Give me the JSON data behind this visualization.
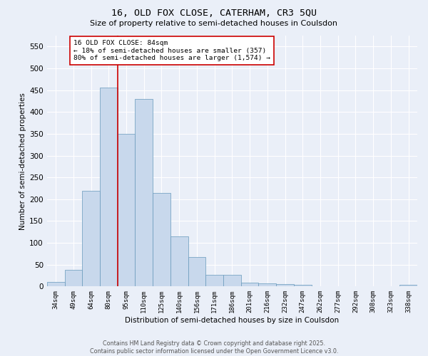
{
  "title_line1": "16, OLD FOX CLOSE, CATERHAM, CR3 5QU",
  "title_line2": "Size of property relative to semi-detached houses in Coulsdon",
  "xlabel": "Distribution of semi-detached houses by size in Coulsdon",
  "ylabel": "Number of semi-detached properties",
  "categories": [
    "34sqm",
    "49sqm",
    "64sqm",
    "80sqm",
    "95sqm",
    "110sqm",
    "125sqm",
    "140sqm",
    "156sqm",
    "171sqm",
    "186sqm",
    "201sqm",
    "216sqm",
    "232sqm",
    "247sqm",
    "262sqm",
    "277sqm",
    "292sqm",
    "308sqm",
    "323sqm",
    "338sqm"
  ],
  "values": [
    10,
    38,
    220,
    456,
    350,
    430,
    214,
    115,
    68,
    27,
    27,
    9,
    7,
    5,
    4,
    0,
    0,
    0,
    0,
    0,
    4
  ],
  "bar_color": "#c8d8ec",
  "bar_edge_color": "#6699bb",
  "vline_color": "#cc0000",
  "vline_x_index": 3,
  "annotation_text": "16 OLD FOX CLOSE: 84sqm\n← 18% of semi-detached houses are smaller (357)\n80% of semi-detached houses are larger (1,574) →",
  "annotation_box_color": "#ffffff",
  "annotation_box_edge": "#cc0000",
  "ylim_max": 575,
  "yticks": [
    0,
    50,
    100,
    150,
    200,
    250,
    300,
    350,
    400,
    450,
    500,
    550
  ],
  "bg_color": "#eaeff8",
  "grid_color": "#ffffff",
  "footer_line1": "Contains HM Land Registry data © Crown copyright and database right 2025.",
  "footer_line2": "Contains public sector information licensed under the Open Government Licence v3.0."
}
